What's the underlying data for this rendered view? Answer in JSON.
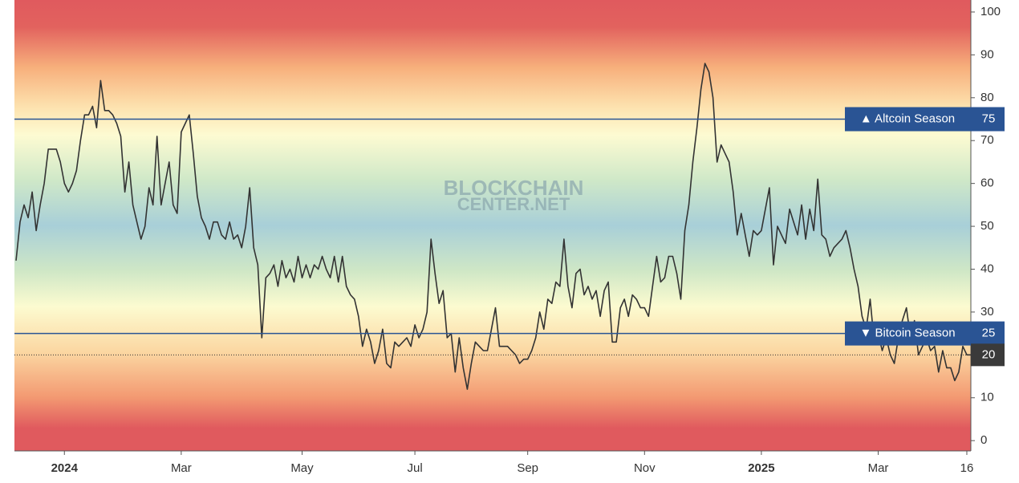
{
  "chart_data": {
    "type": "line",
    "watermark": [
      "BLOCKCHAIN",
      "CENTER.NET"
    ],
    "color": "#333333",
    "values": [
      42,
      51,
      55,
      52,
      58,
      49,
      55,
      60,
      68,
      68,
      68,
      65,
      60,
      58,
      60,
      63,
      70,
      76,
      76,
      78,
      73,
      84,
      77,
      77,
      76,
      74,
      71,
      58,
      65,
      55,
      51,
      47,
      50,
      59,
      55,
      71,
      55,
      60,
      65,
      55,
      53,
      72,
      74,
      76,
      67,
      57,
      52,
      50,
      47,
      51,
      51,
      48,
      47,
      51,
      47,
      48,
      45,
      50,
      59,
      45,
      41,
      24,
      38,
      39,
      41,
      36,
      42,
      38,
      40,
      37,
      43,
      38,
      41,
      38,
      41,
      40,
      43,
      40,
      38,
      43,
      37,
      43,
      36,
      34,
      33,
      29,
      22,
      26,
      23,
      18,
      21,
      26,
      18,
      17,
      23,
      22,
      23,
      24,
      22,
      27,
      24,
      26,
      30,
      47,
      39,
      32,
      35,
      24,
      25,
      16,
      24,
      17,
      12,
      18,
      23,
      22,
      21,
      21,
      26,
      31,
      22,
      22,
      22,
      21,
      20,
      18,
      19,
      19,
      21,
      24,
      30,
      26,
      33,
      32,
      37,
      36,
      47,
      36,
      31,
      39,
      40,
      34,
      36,
      33,
      35,
      29,
      35,
      37,
      23,
      23,
      31,
      33,
      29,
      34,
      33,
      31,
      31,
      29,
      36,
      43,
      37,
      38,
      43,
      43,
      39,
      33,
      49,
      55,
      65,
      73,
      82,
      88,
      86,
      80,
      65,
      69,
      67,
      65,
      58,
      48,
      53,
      48,
      43,
      49,
      48,
      49,
      54,
      59,
      41,
      50,
      48,
      46,
      54,
      51,
      48,
      55,
      47,
      54,
      49,
      61,
      48,
      47,
      43,
      45,
      46,
      47,
      49,
      45,
      40,
      36,
      29,
      26,
      33,
      23,
      25,
      21,
      24,
      20,
      18,
      24,
      28,
      31,
      24,
      28,
      20,
      22,
      24,
      21,
      22,
      16,
      21,
      17,
      17,
      14,
      16,
      22,
      20,
      20
    ],
    "xticks": [
      {
        "value": 12,
        "label": "2024"
      },
      {
        "value": 41,
        "label": "Mar"
      },
      {
        "value": 71,
        "label": "May"
      },
      {
        "value": 99,
        "label": "Jul"
      },
      {
        "value": 127,
        "label": "Sep"
      },
      {
        "value": 156,
        "label": "Nov"
      },
      {
        "value": 185,
        "label": "2025"
      },
      {
        "value": 214,
        "label": "Mar"
      },
      {
        "value": 236,
        "label": "16"
      }
    ],
    "ylim": [
      -2.4,
      102.8
    ],
    "yticks": [
      0,
      10,
      20,
      30,
      40,
      50,
      60,
      70,
      80,
      90,
      100
    ],
    "reference_lines": [
      {
        "value": 75,
        "label": "▲ Altcoin Season",
        "color": "#2a5494"
      },
      {
        "value": 25,
        "label": "▼ Bitcoin Season",
        "color": "#2a5494"
      }
    ],
    "current_value": 20
  }
}
